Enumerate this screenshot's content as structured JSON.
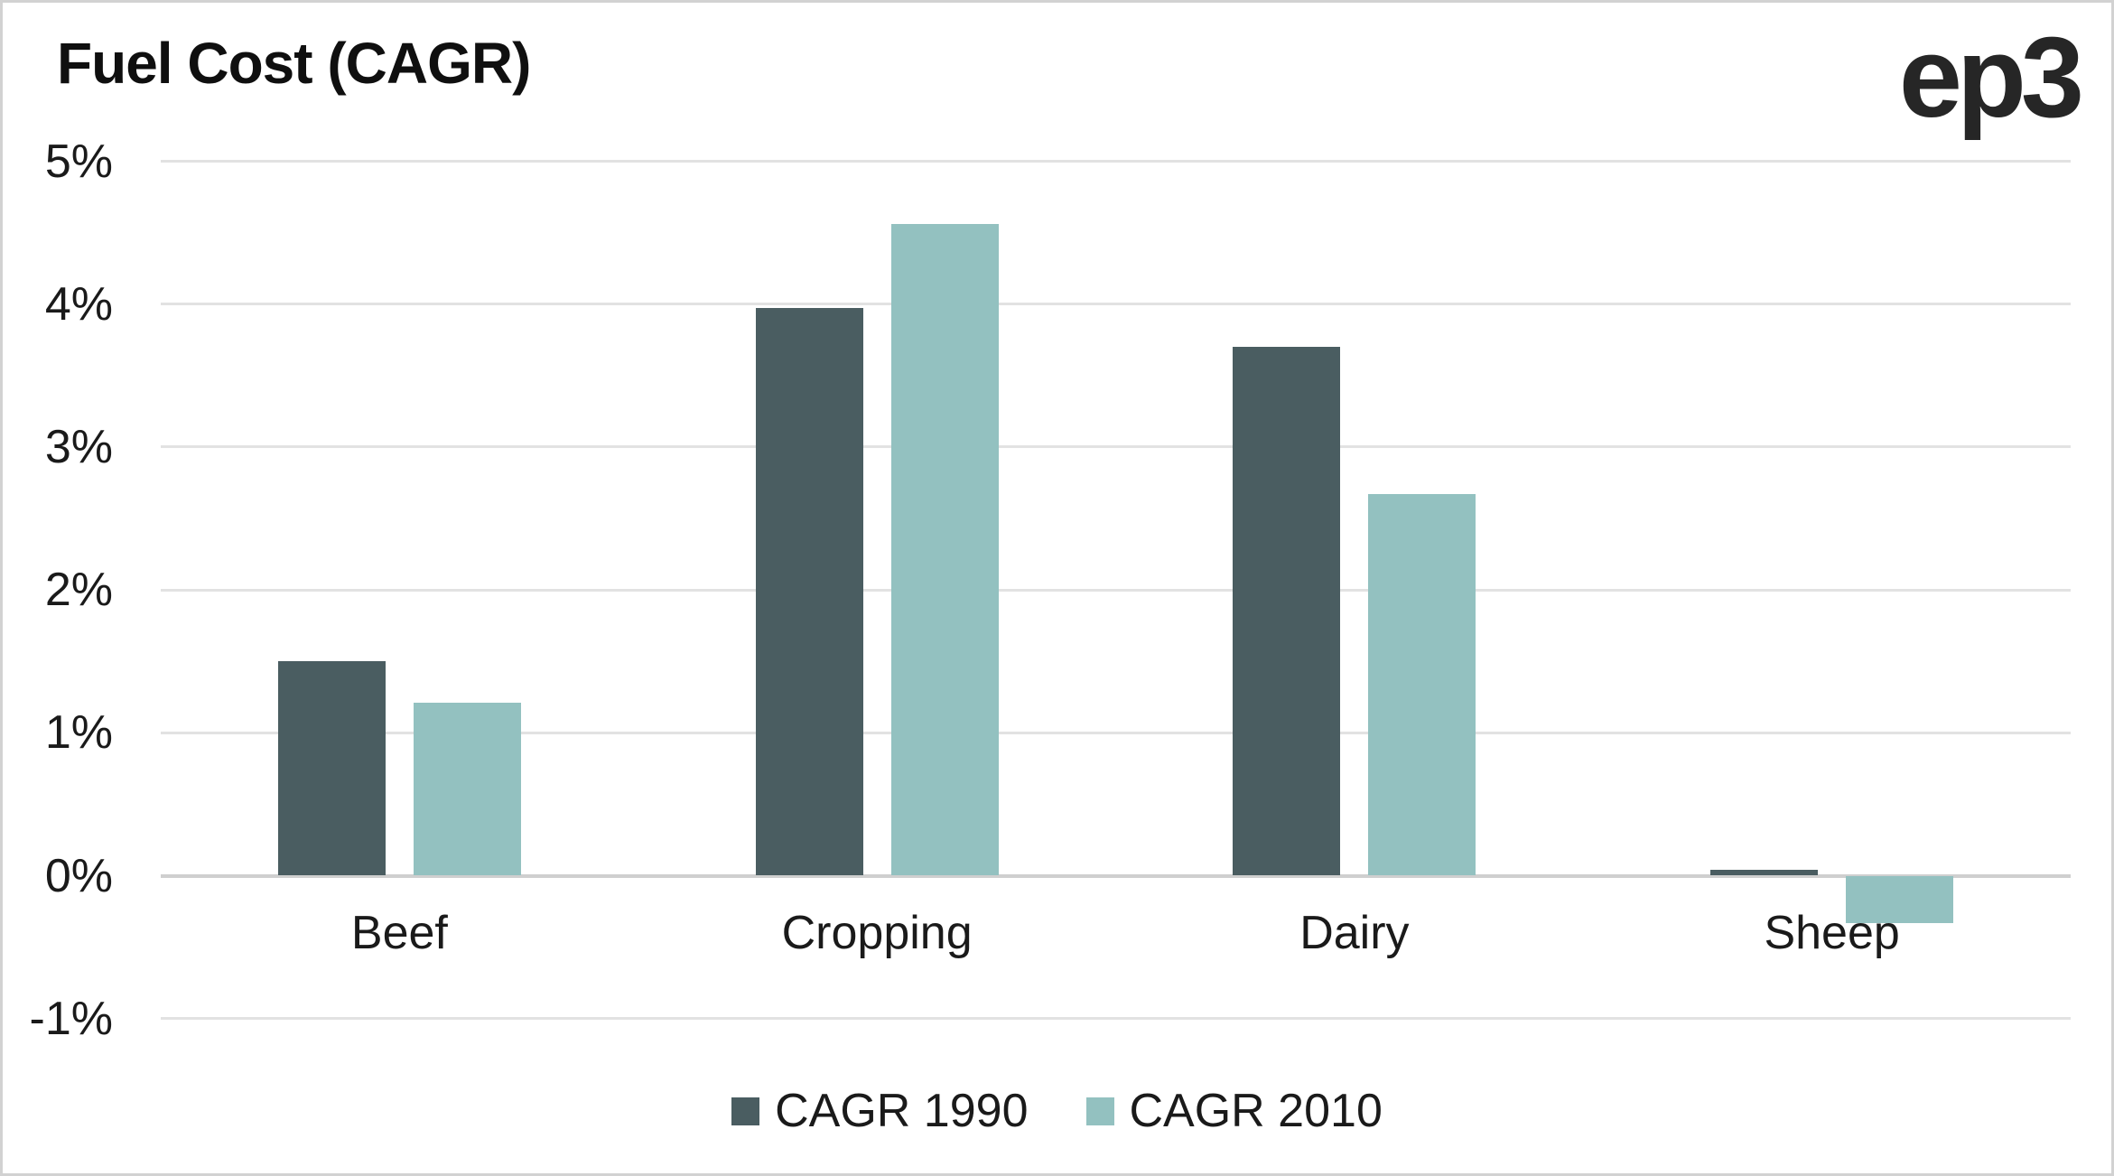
{
  "title": "Fuel Cost (CAGR)",
  "logo_text": "ep3",
  "colors": {
    "background": "#ffffff",
    "border": "#d2d2d2",
    "grid": "#e2e2e2",
    "zero_line": "#cfcfcf",
    "text": "#1a1a1a",
    "title_text": "#0f0f0f",
    "logo_text": "#262626",
    "series_1990": "#4a5d61",
    "series_2010": "#93c1c0"
  },
  "chart_data": {
    "type": "bar",
    "title": "Fuel Cost (CAGR)",
    "categories": [
      "Beef",
      "Cropping",
      "Dairy",
      "Sheep"
    ],
    "series": [
      {
        "name": "CAGR 1990",
        "color": "#4a5d61",
        "values": [
          1.5,
          3.97,
          3.7,
          0.04
        ]
      },
      {
        "name": "CAGR 2010",
        "color": "#93c1c0",
        "values": [
          1.21,
          4.56,
          2.67,
          -0.33
        ]
      }
    ],
    "xlabel": "",
    "ylabel": "",
    "ylim": [
      -1,
      5
    ],
    "ytick_step": 1,
    "ytick_labels": [
      "5%",
      "4%",
      "3%",
      "2%",
      "1%",
      "0%",
      "-1%"
    ],
    "ytick_values": [
      5,
      4,
      3,
      2,
      1,
      0,
      -1
    ],
    "grid": "horizontal",
    "legend_position": "bottom",
    "legend_entries": [
      "CAGR 1990",
      "CAGR 2010"
    ]
  }
}
